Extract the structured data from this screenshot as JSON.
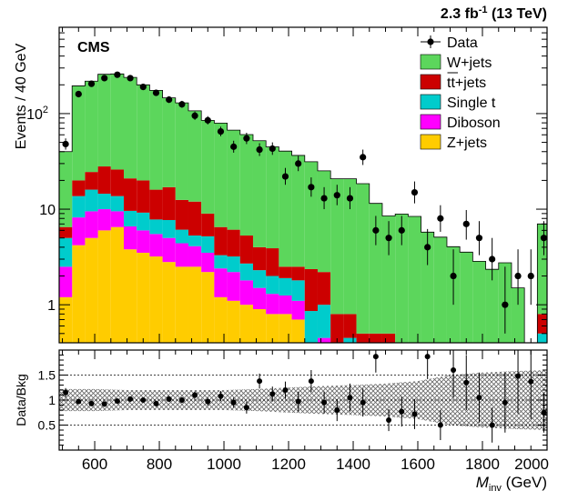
{
  "header": {
    "lumi": "2.3 fb",
    "lumi_exp": "-1",
    "energy": " (13 TeV)",
    "experiment": "CMS"
  },
  "chart_data": {
    "type": "bar",
    "title": "",
    "bin_width": 40,
    "x_range": [
      490,
      2000
    ],
    "main": {
      "ylabel": "Events / 40 GeV",
      "yscale": "log",
      "ylim": [
        0.4,
        800
      ],
      "ytick_labels": [
        {
          "value": 1,
          "label": "1"
        },
        {
          "value": 10,
          "label": "10"
        },
        {
          "value": 100,
          "label": "10",
          "exp": "2"
        }
      ]
    },
    "ratio": {
      "ylabel": "Data/Bkg",
      "ylim": [
        0,
        2
      ],
      "ytick_labels": [
        {
          "value": 0.5,
          "label": "0.5"
        },
        {
          "value": 1,
          "label": "1"
        },
        {
          "value": 1.5,
          "label": "1.5"
        }
      ],
      "xlabel": "M",
      "xlabel_sub": "inv",
      "xlabel_unit": " (GeV)",
      "xtick_labels": [
        600,
        800,
        1000,
        1200,
        1400,
        1600,
        1800,
        2000
      ],
      "gridlines": [
        0.5,
        1,
        1.5
      ]
    },
    "legend": {
      "position": "top-right",
      "entries": [
        {
          "name": "Data",
          "kind": "marker"
        },
        {
          "name": "W+jets",
          "kind": "box",
          "color": "#5cd65c"
        },
        {
          "name": "tt+jets",
          "kind": "box",
          "color": "#cc0000",
          "overbar": true
        },
        {
          "name": "Single t",
          "kind": "box",
          "color": "#00cccc"
        },
        {
          "name": "Diboson",
          "kind": "box",
          "color": "#ff00ff"
        },
        {
          "name": "Z+jets",
          "kind": "box",
          "color": "#ffcc00"
        }
      ]
    },
    "bins_low_edge": [
      490,
      530,
      570,
      610,
      650,
      690,
      730,
      770,
      810,
      850,
      890,
      930,
      970,
      1010,
      1050,
      1090,
      1130,
      1170,
      1210,
      1250,
      1290,
      1330,
      1370,
      1410,
      1450,
      1490,
      1530,
      1570,
      1610,
      1650,
      1690,
      1730,
      1770,
      1810,
      1850,
      1890,
      1930,
      1970
    ],
    "stack": [
      {
        "name": "Z+jets",
        "color": "#ffcc00",
        "values": [
          1.2,
          4.2,
          5.0,
          6.0,
          6.5,
          3.8,
          3.5,
          3.2,
          2.8,
          2.5,
          2.5,
          2.2,
          1.2,
          1.1,
          1.0,
          0.9,
          0.8,
          0.8,
          0.7,
          0,
          0,
          0,
          0,
          0,
          0,
          0,
          0,
          0,
          0,
          0,
          0,
          0,
          0,
          0,
          0,
          0,
          0,
          0
        ]
      },
      {
        "name": "Diboson",
        "color": "#ff00ff",
        "values": [
          1.3,
          4.0,
          4.5,
          4.0,
          3.0,
          2.8,
          2.5,
          2.3,
          2.2,
          1.9,
          1.6,
          1.3,
          1.2,
          1.1,
          0.8,
          0.6,
          0.5,
          0.45,
          0.4,
          0.22,
          0.45,
          0,
          0,
          0,
          0,
          0,
          0,
          0,
          0,
          0,
          0,
          0,
          0,
          0,
          0,
          0,
          0,
          0
        ]
      },
      {
        "name": "Single t",
        "color": "#00cccc",
        "values": [
          2.5,
          5.5,
          6.5,
          4.5,
          4.2,
          3.0,
          3.2,
          2.3,
          2.7,
          1.7,
          1.2,
          1.7,
          0.9,
          1.0,
          0.9,
          0.8,
          0.7,
          0.65,
          0.7,
          0.64,
          0.55,
          0.3,
          0.45,
          0.2,
          0.15,
          0.1,
          0.15,
          0.1,
          0.1,
          0.1,
          0.05,
          0.05,
          0.05,
          0.05,
          0.25,
          0,
          0,
          0.5
        ]
      },
      {
        "name": "tt+jets",
        "color": "#cc0000",
        "values": [
          1.5,
          6.3,
          8.5,
          13.5,
          12.3,
          11.4,
          10.8,
          8.2,
          9.3,
          6.4,
          6.7,
          3.8,
          3.2,
          2.9,
          2.6,
          1.7,
          1.9,
          0.6,
          0.7,
          1.5,
          1.2,
          0.5,
          0.35,
          0.3,
          0.35,
          0.4,
          0.25,
          0.3,
          0.15,
          0,
          0,
          0,
          0,
          0,
          0,
          0,
          0,
          0.3
        ]
      },
      {
        "name": "W+jets",
        "color": "#5cd65c",
        "values": [
          33.5,
          175,
          194,
          230,
          234,
          218,
          180,
          159,
          129,
          117,
          95,
          76,
          73,
          61,
          55,
          48,
          41,
          38,
          34,
          29,
          23,
          20,
          20,
          18,
          11,
          8,
          8.5,
          8,
          5.5,
          5,
          4,
          3.5,
          2.8,
          2.3,
          2.5,
          1.5,
          0,
          6.2
        ]
      }
    ],
    "data_points": [
      {
        "x": 510,
        "y": 48,
        "lo": 42,
        "hi": 55
      },
      {
        "x": 550,
        "y": 160,
        "lo": 148,
        "hi": 173
      },
      {
        "x": 590,
        "y": 205,
        "lo": 191,
        "hi": 220
      },
      {
        "x": 630,
        "y": 235,
        "lo": 220,
        "hi": 251
      },
      {
        "x": 670,
        "y": 255,
        "lo": 239,
        "hi": 272
      },
      {
        "x": 710,
        "y": 235,
        "lo": 220,
        "hi": 251
      },
      {
        "x": 750,
        "y": 190,
        "lo": 177,
        "hi": 204
      },
      {
        "x": 790,
        "y": 165,
        "lo": 153,
        "hi": 178
      },
      {
        "x": 830,
        "y": 140,
        "lo": 129,
        "hi": 152
      },
      {
        "x": 870,
        "y": 125,
        "lo": 115,
        "hi": 136
      },
      {
        "x": 910,
        "y": 95,
        "lo": 86,
        "hi": 105
      },
      {
        "x": 950,
        "y": 85,
        "lo": 77,
        "hi": 94
      },
      {
        "x": 990,
        "y": 65,
        "lo": 58,
        "hi": 73
      },
      {
        "x": 1030,
        "y": 45,
        "lo": 39,
        "hi": 52
      },
      {
        "x": 1070,
        "y": 55,
        "lo": 48,
        "hi": 63
      },
      {
        "x": 1110,
        "y": 42,
        "lo": 36,
        "hi": 49
      },
      {
        "x": 1150,
        "y": 43,
        "lo": 37,
        "hi": 50
      },
      {
        "x": 1190,
        "y": 22,
        "lo": 18,
        "hi": 27
      },
      {
        "x": 1230,
        "y": 30,
        "lo": 25,
        "hi": 36
      },
      {
        "x": 1270,
        "y": 17,
        "lo": 13.5,
        "hi": 21.5
      },
      {
        "x": 1310,
        "y": 13,
        "lo": 10,
        "hi": 17
      },
      {
        "x": 1350,
        "y": 14,
        "lo": 11,
        "hi": 18
      },
      {
        "x": 1390,
        "y": 13,
        "lo": 10,
        "hi": 17
      },
      {
        "x": 1430,
        "y": 35,
        "lo": 29,
        "hi": 42
      },
      {
        "x": 1470,
        "y": 6,
        "lo": 4.2,
        "hi": 8.5
      },
      {
        "x": 1510,
        "y": 5,
        "lo": 3.3,
        "hi": 7.5
      },
      {
        "x": 1550,
        "y": 6,
        "lo": 4.2,
        "hi": 8.5
      },
      {
        "x": 1590,
        "y": 15,
        "lo": 11.5,
        "hi": 19.5
      },
      {
        "x": 1630,
        "y": 4,
        "lo": 2.6,
        "hi": 6.2
      },
      {
        "x": 1670,
        "y": 8,
        "lo": 5.8,
        "hi": 11
      },
      {
        "x": 1710,
        "y": 2,
        "lo": 1,
        "hi": 3.8
      },
      {
        "x": 1750,
        "y": 7,
        "lo": 4.8,
        "hi": 9.8
      },
      {
        "x": 1790,
        "y": 5,
        "lo": 3.3,
        "hi": 7.5
      },
      {
        "x": 1830,
        "y": 3,
        "lo": 1.8,
        "hi": 5
      },
      {
        "x": 1870,
        "y": 1,
        "lo": 0.5,
        "hi": 2.5
      },
      {
        "x": 1910,
        "y": 2,
        "lo": 1,
        "hi": 3.8
      },
      {
        "x": 1950,
        "y": 2,
        "lo": 1,
        "hi": 3.8
      },
      {
        "x": 1990,
        "y": 5,
        "lo": 3.3,
        "hi": 7.5
      }
    ],
    "ratio_points": [
      {
        "x": 510,
        "y": 1.15,
        "err": 0.09
      },
      {
        "x": 550,
        "y": 0.97,
        "err": 0.05
      },
      {
        "x": 590,
        "y": 0.93,
        "err": 0.05
      },
      {
        "x": 630,
        "y": 0.92,
        "err": 0.05
      },
      {
        "x": 670,
        "y": 0.98,
        "err": 0.05
      },
      {
        "x": 710,
        "y": 1.02,
        "err": 0.05
      },
      {
        "x": 750,
        "y": 1.0,
        "err": 0.05
      },
      {
        "x": 790,
        "y": 0.93,
        "err": 0.06
      },
      {
        "x": 830,
        "y": 1.02,
        "err": 0.06
      },
      {
        "x": 870,
        "y": 1.0,
        "err": 0.06
      },
      {
        "x": 910,
        "y": 1.1,
        "err": 0.07
      },
      {
        "x": 950,
        "y": 0.97,
        "err": 0.08
      },
      {
        "x": 990,
        "y": 1.08,
        "err": 0.1
      },
      {
        "x": 1030,
        "y": 0.95,
        "err": 0.1
      },
      {
        "x": 1070,
        "y": 0.85,
        "err": 0.12
      },
      {
        "x": 1110,
        "y": 1.38,
        "err": 0.15
      },
      {
        "x": 1150,
        "y": 1.12,
        "err": 0.15
      },
      {
        "x": 1190,
        "y": 1.2,
        "err": 0.17
      },
      {
        "x": 1230,
        "y": 0.97,
        "err": 0.2
      },
      {
        "x": 1270,
        "y": 1.38,
        "err": 0.22
      },
      {
        "x": 1310,
        "y": 0.95,
        "err": 0.22
      },
      {
        "x": 1350,
        "y": 0.8,
        "err": 0.22
      },
      {
        "x": 1390,
        "y": 1.05,
        "err": 0.28
      },
      {
        "x": 1430,
        "y": 0.95,
        "err": 0.28
      },
      {
        "x": 1470,
        "y": 1.87,
        "err": 0.32
      },
      {
        "x": 1510,
        "y": 0.6,
        "err": 0.22
      },
      {
        "x": 1550,
        "y": 0.77,
        "err": 0.3
      },
      {
        "x": 1590,
        "y": 0.72,
        "err": 0.3
      },
      {
        "x": 1630,
        "y": 1.87,
        "err": 0.45
      },
      {
        "x": 1670,
        "y": 0.5,
        "err": 0.3
      },
      {
        "x": 1710,
        "y": 1.6,
        "err": 0.55
      },
      {
        "x": 1750,
        "y": 1.35,
        "err": 0.55
      },
      {
        "x": 1790,
        "y": 1.05,
        "err": 0.5
      },
      {
        "x": 1830,
        "y": 0.5,
        "err": 0.35
      },
      {
        "x": 1870,
        "y": 0.95,
        "err": 0.6
      },
      {
        "x": 1910,
        "y": 1.48,
        "err": 0.75
      },
      {
        "x": 1950,
        "y": 1.37,
        "err": 0.75
      },
      {
        "x": 1990,
        "y": 0.75,
        "err": 0.4
      }
    ],
    "uncertainty_band": {
      "x": [
        490,
        600,
        700,
        800,
        900,
        1000,
        1100,
        1200,
        1300,
        1400,
        1500,
        1600,
        1700,
        1800,
        1900,
        2000
      ],
      "lo": [
        0.78,
        0.78,
        0.8,
        0.8,
        0.8,
        0.8,
        0.78,
        0.75,
        0.72,
        0.7,
        0.67,
        0.62,
        0.5,
        0.45,
        0.42,
        0.4
      ],
      "hi": [
        1.22,
        1.22,
        1.2,
        1.2,
        1.2,
        1.2,
        1.22,
        1.25,
        1.28,
        1.3,
        1.33,
        1.38,
        1.5,
        1.55,
        1.58,
        1.6
      ]
    }
  }
}
